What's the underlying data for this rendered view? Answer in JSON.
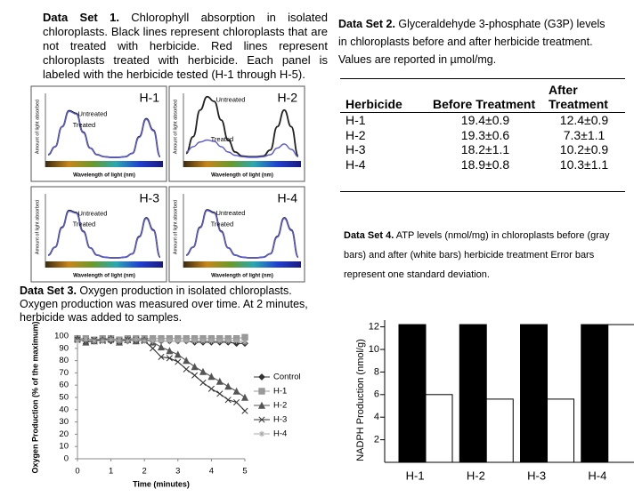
{
  "data_set_1": {
    "label": "Data Set 1.",
    "text": "Chlorophyll absorption in isolated chloroplasts. Black lines represent chloroplasts that are not treated with herbicide. Red lines represent chloroplasts treated with herbicide. Each panel is labeled with the herbicide tested (H-1 through H-5)."
  },
  "data_set_2": {
    "label": "Data Set 2.",
    "text": "Glyceraldehyde 3-phosphate (G3P) levels in chloroplasts before and after herbicide treatment. Values are reported in µmol/mg.",
    "table": {
      "header": [
        "Herbicide",
        "Before Treatment",
        "After Treatment"
      ],
      "rows": [
        [
          "H-1",
          "19.4±0.9",
          "12.4±0.9"
        ],
        [
          "H-2",
          "19.3±0.6",
          "7.3±1.1"
        ],
        [
          "H-3",
          "18.2±1.1",
          "10.2±0.9"
        ],
        [
          "H-4",
          "18.9±0.8",
          "10.3±1.1"
        ]
      ]
    }
  },
  "data_set_3": {
    "label": "Data Set 3.",
    "text": "Oxygen production in isolated chloroplasts. Oxygen production was measured over time. At 2 minutes, herbicide was added to samples."
  },
  "data_set_4": {
    "label": "Data Set 4.",
    "text": "ATP levels (nmol/mg) in chloroplasts before (gray bars) and after (white bars) herbicide treatment Error bars represent one standard deviation."
  },
  "chart_data": [
    {
      "type": "line",
      "title": "H-1",
      "y_label": "Amount of light absorbed",
      "x_label": "Wavelength of light (nm)",
      "ylim": [
        0,
        1
      ],
      "series": [
        {
          "name": "Untreated",
          "color": "#222222",
          "values": [
            0.08,
            0.2,
            0.5,
            0.74,
            0.7,
            0.42,
            0.18,
            0.08,
            0.05,
            0.04,
            0.04,
            0.05,
            0.1,
            0.35,
            0.62,
            0.45,
            0.05
          ]
        },
        {
          "name": "Treated",
          "color": "#5b5bd6",
          "values": [
            0.08,
            0.2,
            0.5,
            0.73,
            0.69,
            0.41,
            0.18,
            0.08,
            0.05,
            0.04,
            0.04,
            0.05,
            0.1,
            0.34,
            0.61,
            0.44,
            0.05
          ]
        }
      ]
    },
    {
      "type": "line",
      "title": "H-2",
      "y_label": "Amount of light absorbed",
      "x_label": "Wavelength of light (nm)",
      "ylim": [
        0,
        1
      ],
      "series": [
        {
          "name": "Untreated",
          "color": "#222222",
          "values": [
            0.1,
            0.35,
            0.75,
            0.95,
            0.88,
            0.6,
            0.3,
            0.12,
            0.06,
            0.05,
            0.05,
            0.06,
            0.15,
            0.5,
            0.75,
            0.5,
            0.06
          ]
        },
        {
          "name": "Treated",
          "color": "#5b5bd6",
          "values": [
            0.12,
            0.2,
            0.27,
            0.3,
            0.28,
            0.2,
            0.12,
            0.07,
            0.05,
            0.04,
            0.04,
            0.05,
            0.08,
            0.18,
            0.24,
            0.16,
            0.05
          ]
        }
      ]
    },
    {
      "type": "line",
      "title": "H-3",
      "y_label": "Amount of light absorbed",
      "x_label": "Wavelength of light (nm)",
      "ylim": [
        0,
        1
      ],
      "series": [
        {
          "name": "Untreated",
          "color": "#222222",
          "values": [
            0.08,
            0.2,
            0.5,
            0.75,
            0.72,
            0.44,
            0.19,
            0.08,
            0.05,
            0.04,
            0.04,
            0.05,
            0.1,
            0.36,
            0.64,
            0.46,
            0.05
          ]
        },
        {
          "name": "Treated",
          "color": "#5b5bd6",
          "values": [
            0.08,
            0.2,
            0.49,
            0.74,
            0.71,
            0.43,
            0.19,
            0.08,
            0.05,
            0.04,
            0.04,
            0.05,
            0.1,
            0.35,
            0.63,
            0.45,
            0.05
          ]
        }
      ]
    },
    {
      "type": "line",
      "title": "H-4",
      "y_label": "Amount of light absorbed",
      "x_label": "Wavelength of light (nm)",
      "ylim": [
        0,
        1
      ],
      "series": [
        {
          "name": "Untreated",
          "color": "#222222",
          "values": [
            0.08,
            0.2,
            0.5,
            0.76,
            0.72,
            0.44,
            0.19,
            0.08,
            0.05,
            0.04,
            0.04,
            0.05,
            0.1,
            0.36,
            0.64,
            0.46,
            0.05
          ]
        },
        {
          "name": "Treated",
          "color": "#5b5bd6",
          "values": [
            0.08,
            0.2,
            0.49,
            0.75,
            0.71,
            0.43,
            0.19,
            0.08,
            0.05,
            0.04,
            0.04,
            0.05,
            0.1,
            0.35,
            0.63,
            0.45,
            0.05
          ]
        }
      ]
    },
    {
      "type": "line",
      "y_label": "Oxygen Production (% of the maximum)",
      "x_label": "Time (minutes)",
      "legend": "right",
      "x": [
        0,
        0.25,
        0.5,
        0.75,
        1,
        1.25,
        1.5,
        1.75,
        2,
        2.25,
        2.5,
        2.75,
        3,
        3.25,
        3.5,
        3.75,
        4,
        4.25,
        4.5,
        4.75,
        5
      ],
      "xlim": [
        0,
        5
      ],
      "xticks": [
        0,
        1,
        2,
        3,
        4,
        5
      ],
      "ylim": [
        0,
        100
      ],
      "yticks": [
        0,
        10,
        20,
        30,
        40,
        50,
        60,
        70,
        80,
        90,
        100
      ],
      "series": [
        {
          "name": "Control",
          "color": "#333333",
          "marker": "diamond",
          "values": [
            97,
            97,
            96,
            97,
            96,
            97,
            96,
            97,
            97,
            96,
            96,
            96,
            96,
            96,
            95,
            95,
            95,
            95,
            95,
            94,
            94
          ]
        },
        {
          "name": "H-1",
          "color": "#999999",
          "marker": "square",
          "values": [
            98,
            98,
            97,
            98,
            98,
            97,
            98,
            98,
            98,
            98,
            98,
            98,
            98,
            98,
            98,
            98,
            98,
            98,
            98,
            98,
            99
          ]
        },
        {
          "name": "H-2",
          "color": "#555555",
          "marker": "triangle",
          "values": [
            98,
            95,
            96,
            97,
            98,
            95,
            97,
            96,
            97,
            95,
            91,
            88,
            85,
            80,
            75,
            71,
            67,
            63,
            59,
            55,
            50
          ]
        },
        {
          "name": "H-3",
          "color": "#333333",
          "marker": "x",
          "values": [
            97,
            96,
            97,
            96,
            97,
            96,
            97,
            97,
            96,
            90,
            83,
            82,
            79,
            73,
            68,
            62,
            57,
            53,
            48,
            46,
            39
          ]
        },
        {
          "name": "H-4",
          "color": "#aaaaaa",
          "marker": "star",
          "values": [
            96,
            97,
            96,
            96,
            97,
            96,
            96,
            97,
            96,
            96,
            96,
            96,
            96,
            96,
            96,
            96,
            96,
            96,
            96,
            96,
            95
          ]
        }
      ]
    },
    {
      "type": "bar",
      "y_label": "NADPH Production (nmol/g)",
      "categories": [
        "H-1",
        "H-2",
        "H-3",
        "H-4"
      ],
      "ylim": [
        0,
        12.6
      ],
      "yticks": [
        2,
        4,
        6,
        8,
        10,
        12
      ],
      "series": [
        {
          "color": "#000000",
          "values": [
            12.2,
            12.2,
            12.2,
            12.2
          ]
        },
        {
          "color": "#ffffff",
          "values": [
            6,
            5.6,
            5.6,
            12.2
          ]
        }
      ]
    }
  ]
}
